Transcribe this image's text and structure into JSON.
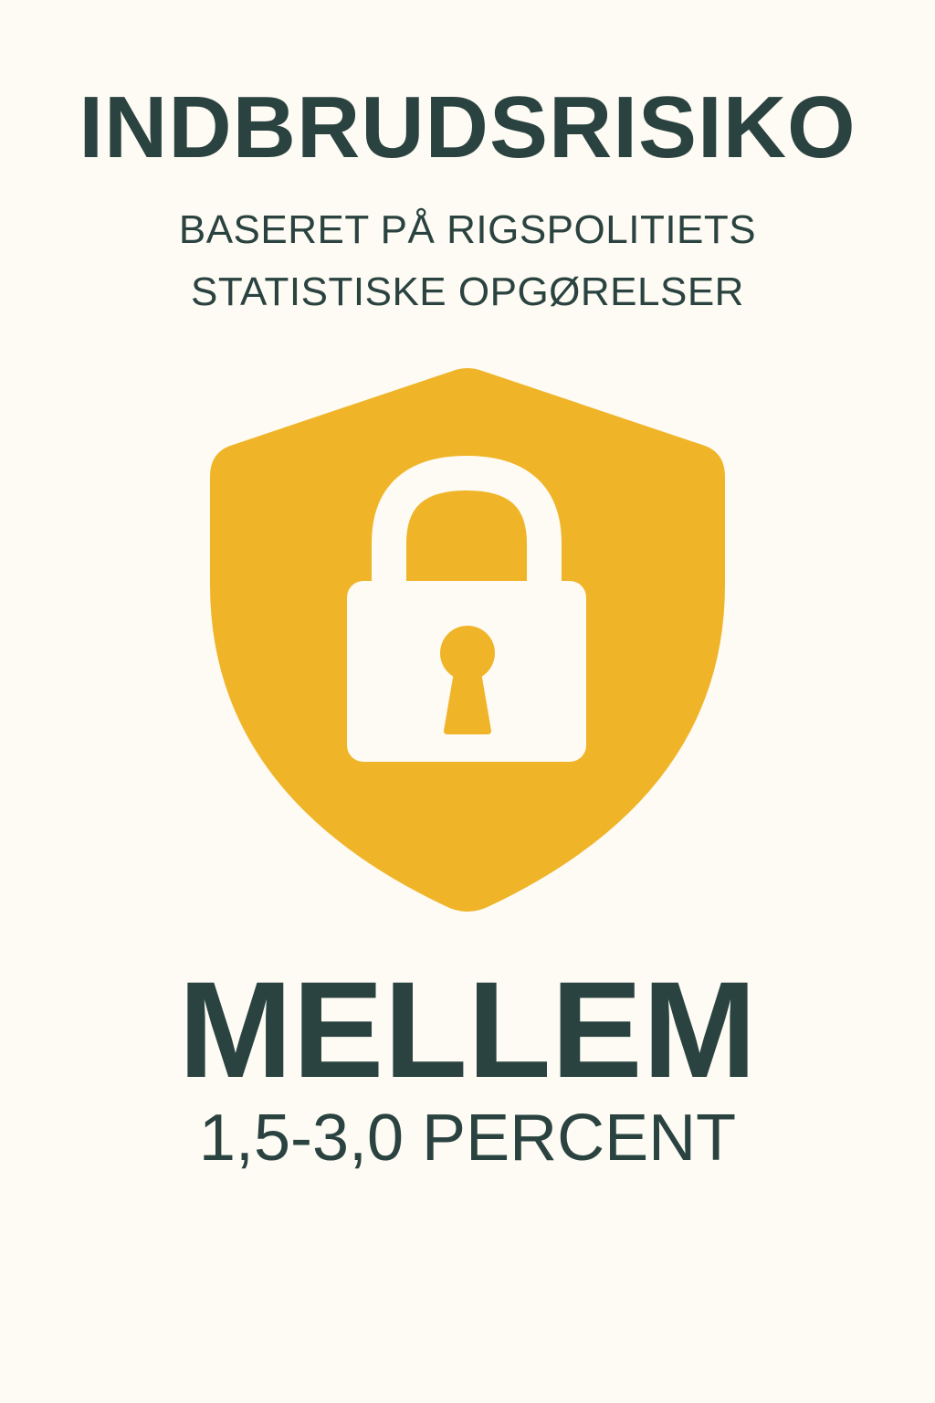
{
  "header": {
    "title": "INDBRUDSRISIKO",
    "subtitle_line1": "BASERET PÅ RIGSPOLITIETS",
    "subtitle_line2": "STATISTISKE OPGØRELSER"
  },
  "emblem": {
    "shield_icon": "shield-icon",
    "lock_icon": "padlock-icon",
    "shield_color": "#f0b429",
    "lock_color": "#fdfbf3"
  },
  "result": {
    "level": "MELLEM",
    "range": "1,5-3,0 PERCENT"
  },
  "colors": {
    "background": "#fdfbf3",
    "text": "#2b4340"
  }
}
